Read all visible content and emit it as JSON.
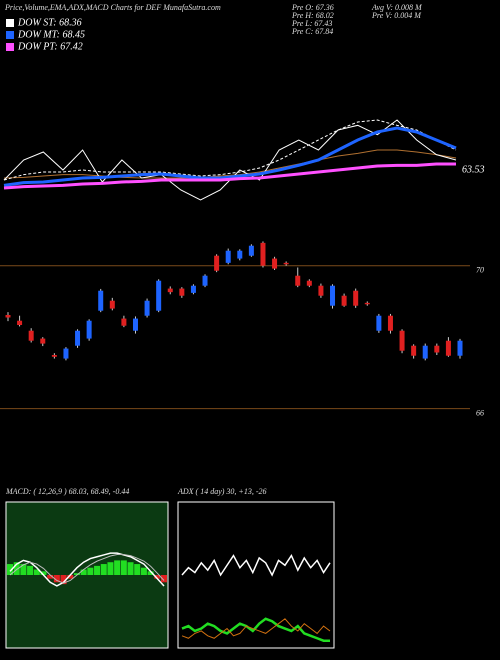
{
  "header": {
    "title": "Price,Volume,EMA,ADX,MACD Charts for DEF MunafaSutra.com",
    "legend": [
      {
        "label": "DOW ST: 68.36",
        "color": "#ffffff"
      },
      {
        "label": "DOW MT: 68.45",
        "color": "#1e64ff"
      },
      {
        "label": "DOW PT: 67.42",
        "color": "#ff50ff"
      }
    ],
    "info": [
      "Pre  O: 67.36",
      "Pre  H: 68.02",
      "Pre  L: 67.43",
      "Pre  C: 67.84",
      "Avg V: 0.008  M",
      "Pre  V: 0.004  M"
    ]
  },
  "chart_data": [
    {
      "type": "line",
      "annotation": "63.53",
      "ylim": [
        60,
        72
      ],
      "series": [
        {
          "color": "#b07030",
          "width": 1,
          "values": [
            63.15,
            63.2,
            63.3,
            63.4,
            63.4,
            63.3,
            63.2,
            63.15,
            63.15,
            63.15,
            63.2,
            63.3,
            63.4,
            63.6,
            63.9,
            64.2,
            64.5,
            64.8,
            65.0,
            65.25,
            65.25,
            65.1,
            64.9,
            64.65
          ]
        },
        {
          "color": "#ffffff",
          "width": 1,
          "dash": true,
          "values": [
            63.0,
            63.4,
            63.6,
            63.6,
            63.75,
            63.6,
            63.6,
            63.6,
            63.6,
            63.45,
            63.3,
            63.4,
            63.6,
            63.9,
            64.5,
            65.25,
            66.0,
            66.75,
            67.35,
            67.5,
            67.1,
            66.75,
            66.0,
            65.25
          ]
        },
        {
          "color": "#ffffff",
          "width": 1,
          "values": [
            63.0,
            64.5,
            65.1,
            63.75,
            65.25,
            62.85,
            64.5,
            63.15,
            63.4,
            62.25,
            61.5,
            62.25,
            63.75,
            63.0,
            65.25,
            66.0,
            65.25,
            66.75,
            67.1,
            66.4,
            67.5,
            66.0,
            64.9,
            64.5
          ]
        },
        {
          "color": "#1e64ff",
          "width": 3,
          "values": [
            62.6,
            62.8,
            62.85,
            63.0,
            63.15,
            63.2,
            63.3,
            63.4,
            63.45,
            63.3,
            63.15,
            63.15,
            63.3,
            63.45,
            63.75,
            64.1,
            64.5,
            65.25,
            66.0,
            66.6,
            66.9,
            66.6,
            66.0,
            65.4
          ]
        },
        {
          "color": "#ff50ff",
          "width": 3,
          "values": [
            62.4,
            62.5,
            62.55,
            62.6,
            62.7,
            62.75,
            62.85,
            62.9,
            63.0,
            63.0,
            63.0,
            63.0,
            63.1,
            63.15,
            63.3,
            63.45,
            63.6,
            63.75,
            63.9,
            64.05,
            64.1,
            64.1,
            64.2,
            64.2
          ]
        }
      ]
    },
    {
      "type": "candlestick",
      "up_color": "#1e64ff",
      "down_color": "#e02020",
      "grid_color": "#7a4a1a",
      "ylim": [
        64,
        71
      ],
      "yticks": [
        66,
        70
      ],
      "open": [
        68.62,
        68.46,
        68.18,
        67.96,
        67.5,
        67.4,
        67.76,
        67.96,
        68.74,
        69.02,
        68.52,
        68.18,
        68.6,
        68.74,
        69.36,
        69.36,
        69.24,
        69.44,
        70.28,
        70.08,
        70.2,
        70.28,
        70.64,
        70.2,
        70.08,
        69.72,
        69.58,
        69.44,
        68.88,
        69.16,
        69.3,
        68.96,
        68.18,
        68.6,
        68.18,
        67.76,
        67.4,
        67.76,
        67.9,
        67.48
      ],
      "high": [
        68.7,
        68.6,
        68.25,
        68.0,
        67.55,
        67.72,
        68.22,
        68.5,
        69.35,
        69.1,
        68.6,
        68.58,
        69.08,
        69.62,
        69.42,
        69.4,
        69.48,
        69.76,
        70.32,
        70.48,
        70.46,
        70.6,
        70.68,
        70.25,
        70.12,
        69.95,
        69.62,
        69.5,
        69.48,
        69.22,
        69.36,
        69.0,
        68.65,
        68.65,
        68.22,
        67.8,
        67.82,
        67.82,
        68.0,
        67.95
      ],
      "low": [
        68.45,
        68.3,
        67.85,
        67.75,
        67.4,
        67.35,
        67.7,
        67.9,
        68.7,
        68.75,
        68.28,
        68.1,
        68.55,
        68.7,
        69.2,
        69.1,
        69.2,
        69.4,
        69.82,
        70.04,
        70.15,
        70.25,
        69.95,
        69.88,
        70.0,
        69.4,
        69.4,
        69.1,
        68.8,
        68.85,
        68.82,
        68.88,
        68.12,
        68.1,
        67.55,
        67.4,
        67.35,
        67.5,
        67.45,
        67.4
      ],
      "close": [
        68.55,
        68.34,
        67.9,
        67.82,
        67.45,
        67.68,
        68.18,
        68.46,
        69.3,
        68.8,
        68.32,
        68.52,
        69.02,
        69.58,
        69.26,
        69.16,
        69.44,
        69.72,
        69.86,
        70.42,
        70.42,
        70.56,
        70.0,
        69.92,
        70.04,
        69.44,
        69.44,
        69.16,
        69.44,
        68.88,
        68.88,
        68.92,
        68.6,
        68.18,
        67.62,
        67.48,
        67.76,
        67.57,
        67.48,
        67.9
      ]
    },
    {
      "type": "macd",
      "title": "MACD:          ( 12,26,9 ) 68.03,  68.49,  -0.44",
      "background": "#0b3a12",
      "up_color": "#22dd22",
      "down_color": "#e02020",
      "ylim": [
        -2,
        2
      ],
      "histogram": [
        0.3,
        0.35,
        0.3,
        0.25,
        0.15,
        0.1,
        -0.1,
        -0.2,
        -0.25,
        -0.1,
        0.05,
        0.15,
        0.2,
        0.25,
        0.3,
        0.35,
        0.4,
        0.4,
        0.35,
        0.3,
        0.2,
        0.1,
        -0.1,
        -0.2
      ],
      "series": [
        {
          "color": "#ffffff",
          "width": 1.5,
          "values": [
            0.1,
            0.3,
            0.4,
            0.35,
            0.2,
            0,
            -0.2,
            -0.3,
            -0.2,
            0,
            0.2,
            0.35,
            0.45,
            0.5,
            0.55,
            0.6,
            0.6,
            0.55,
            0.5,
            0.4,
            0.3,
            0.1,
            -0.1,
            -0.3
          ]
        },
        {
          "color": "#bbbbbb",
          "width": 1,
          "values": [
            0,
            0.15,
            0.28,
            0.35,
            0.3,
            0.18,
            0,
            -0.15,
            -0.22,
            -0.15,
            0,
            0.15,
            0.28,
            0.38,
            0.45,
            0.52,
            0.56,
            0.56,
            0.53,
            0.46,
            0.38,
            0.24,
            0.05,
            -0.15
          ]
        }
      ]
    },
    {
      "type": "line",
      "title": "ADX                    ( 14  day) 30,  +13,  -26",
      "background": "#000000",
      "ylim": [
        0,
        60
      ],
      "series": [
        {
          "color": "#ffffff",
          "width": 1.5,
          "values": [
            30,
            33,
            31,
            35,
            32,
            36,
            30,
            34,
            38,
            33,
            36,
            31,
            37,
            35,
            30,
            36,
            34,
            38,
            32,
            37,
            33,
            36,
            31,
            35
          ]
        },
        {
          "color": "#22dd22",
          "width": 2.5,
          "values": [
            8,
            9,
            7,
            8,
            10,
            9,
            7,
            6,
            8,
            10,
            9,
            7,
            10,
            12,
            11,
            9,
            8,
            7,
            9,
            6,
            5,
            4,
            3,
            3
          ]
        },
        {
          "color": "#d07010",
          "width": 1,
          "values": [
            5,
            4,
            6,
            7,
            5,
            4,
            6,
            8,
            5,
            6,
            9,
            8,
            7,
            6,
            8,
            10,
            12,
            9,
            7,
            10,
            8,
            6,
            9,
            7
          ]
        }
      ]
    }
  ]
}
